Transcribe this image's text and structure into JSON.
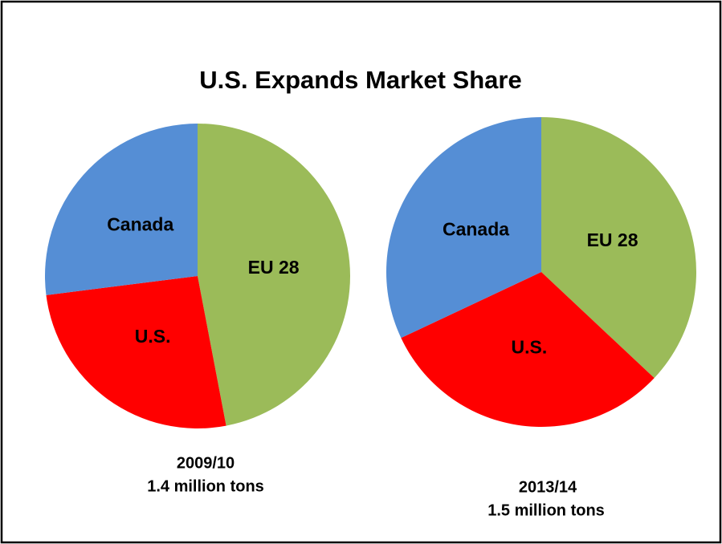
{
  "title": "U.S. Expands Market Share",
  "chart_data": [
    {
      "type": "pie",
      "title": "2009/10",
      "subtitle": "1.4 million tons",
      "categories": [
        "EU 28",
        "U.S.",
        "Canada"
      ],
      "values": [
        47,
        26,
        27
      ],
      "colors": [
        "#9bbb59",
        "#ff0000",
        "#558ed5"
      ]
    },
    {
      "type": "pie",
      "title": "2013/14",
      "subtitle": "1.5 million tons",
      "categories": [
        "EU 28",
        "U.S.",
        "Canada"
      ],
      "values": [
        37,
        31,
        32
      ],
      "colors": [
        "#9bbb59",
        "#ff0000",
        "#558ed5"
      ]
    }
  ]
}
